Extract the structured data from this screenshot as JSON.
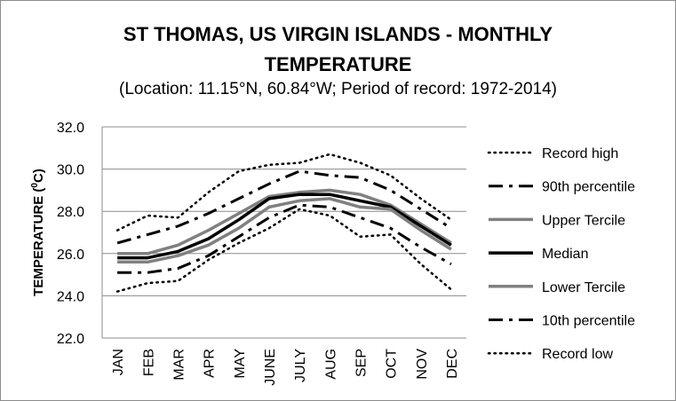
{
  "chart_data": {
    "type": "line",
    "title": "ST THOMAS, US VIRGIN ISLANDS - MONTHLY\nTEMPERATURE",
    "subtitle": "(Location: 11.15°N, 60.84°W; Period of record: 1972-2014)",
    "ylabel_main": "TEMPERATURE (",
    "ylabel_sup": "0",
    "ylabel_end": "C)",
    "xlabel": "",
    "categories": [
      "JAN",
      "FEB",
      "MAR",
      "APR",
      "MAY",
      "JUNE",
      "JULY",
      "AUG",
      "SEP",
      "OCT",
      "NOV",
      "DEC"
    ],
    "ylim": [
      22.0,
      32.0
    ],
    "yticks": [
      "22.0",
      "24.0",
      "26.0",
      "28.0",
      "30.0",
      "32.0"
    ],
    "grid": "horizontal",
    "legend_position": "right",
    "series": [
      {
        "name": "Record high",
        "style": "dotted",
        "color": "#000000",
        "values": [
          27.1,
          27.8,
          27.7,
          28.9,
          29.9,
          30.2,
          30.3,
          30.7,
          30.3,
          29.7,
          28.6,
          27.6
        ]
      },
      {
        "name": "90th percentile",
        "style": "dashdot",
        "color": "#000000",
        "values": [
          26.5,
          26.9,
          27.3,
          27.9,
          28.6,
          29.3,
          29.9,
          29.7,
          29.6,
          29.0,
          28.1,
          27.2
        ]
      },
      {
        "name": "Upper Tercile",
        "style": "solid-gray",
        "color": "#808080",
        "values": [
          26.0,
          26.0,
          26.4,
          27.1,
          27.9,
          28.7,
          28.9,
          29.0,
          28.8,
          28.3,
          27.4,
          26.5
        ]
      },
      {
        "name": "Median",
        "style": "solid-black",
        "color": "#000000",
        "values": [
          25.8,
          25.8,
          26.1,
          26.7,
          27.6,
          28.6,
          28.8,
          28.8,
          28.5,
          28.2,
          27.3,
          26.4
        ]
      },
      {
        "name": "Lower Tercile",
        "style": "solid-gray",
        "color": "#808080",
        "values": [
          25.6,
          25.6,
          25.9,
          26.4,
          27.2,
          28.2,
          28.5,
          28.6,
          28.2,
          28.1,
          27.1,
          26.2
        ]
      },
      {
        "name": "10th percentile",
        "style": "dashdot",
        "color": "#000000",
        "values": [
          25.1,
          25.1,
          25.3,
          25.9,
          26.8,
          27.7,
          28.3,
          28.2,
          27.7,
          27.2,
          26.3,
          25.5
        ]
      },
      {
        "name": "Record low",
        "style": "dotted",
        "color": "#000000",
        "values": [
          24.2,
          24.6,
          24.7,
          25.7,
          26.5,
          27.2,
          28.1,
          27.8,
          26.8,
          26.9,
          25.5,
          24.3
        ]
      }
    ]
  }
}
